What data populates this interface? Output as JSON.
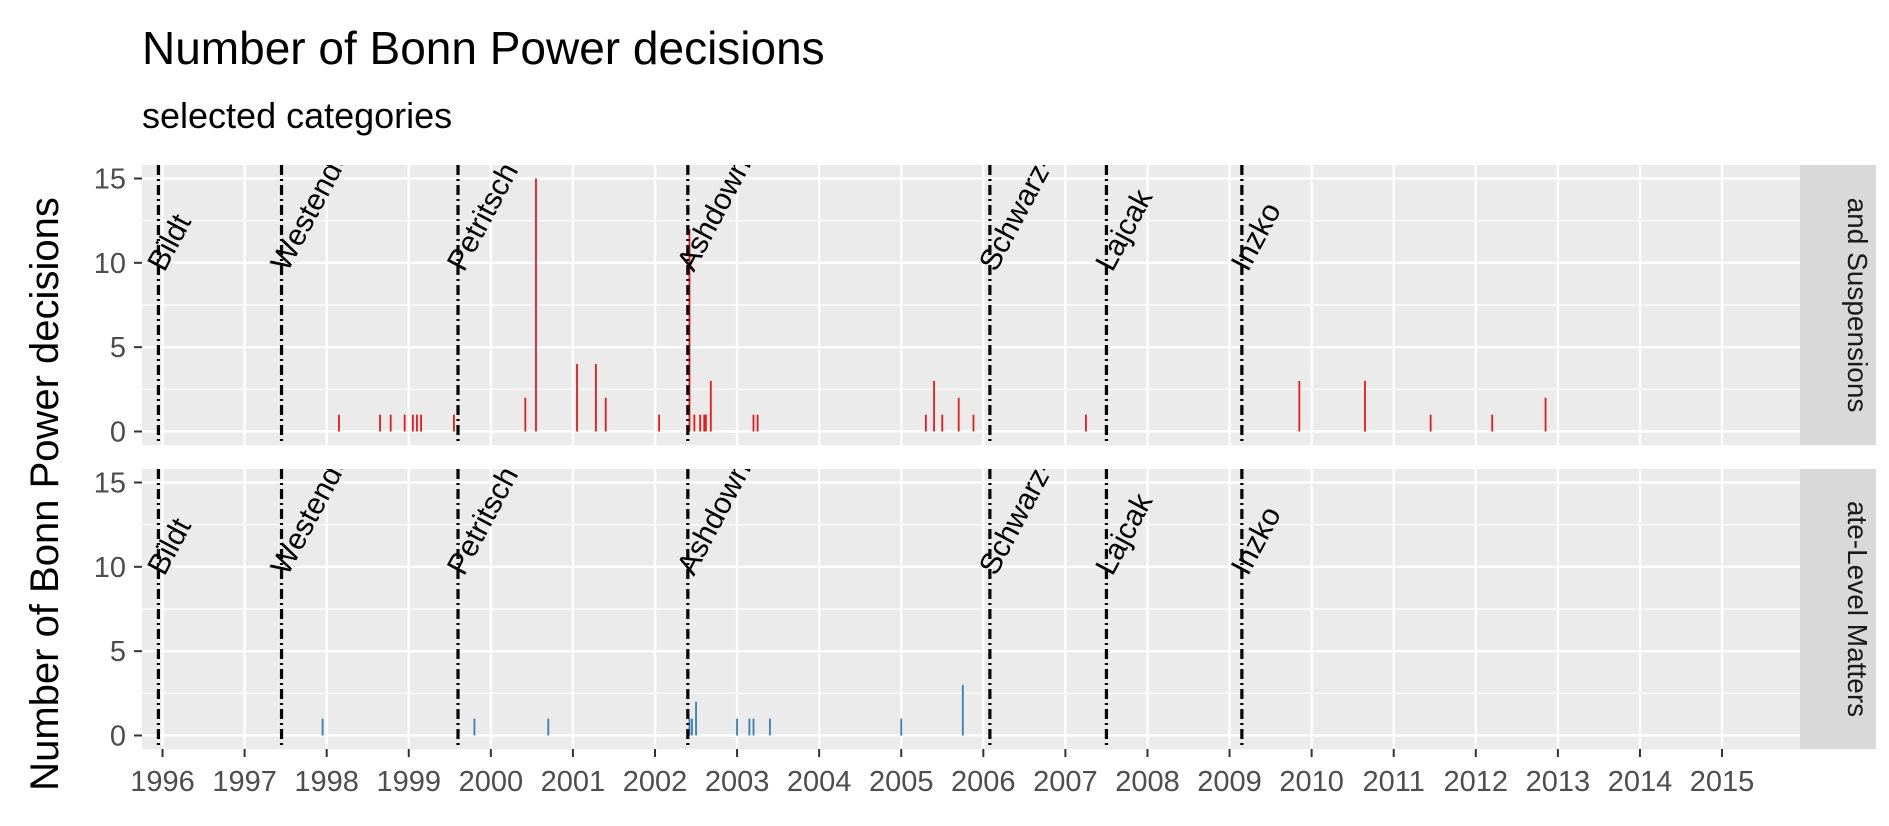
{
  "chart_data": {
    "type": "bar",
    "title": "Number of Bonn Power decisions",
    "subtitle": "selected categories",
    "xlabel": "",
    "ylabel": "Number of Bonn Power decisions",
    "x_ticks": [
      "1996",
      "1997",
      "1998",
      "1999",
      "2000",
      "2001",
      "2002",
      "2003",
      "2004",
      "2005",
      "2006",
      "2007",
      "2008",
      "2009",
      "2010",
      "2011",
      "2012",
      "2013",
      "2014",
      "2015"
    ],
    "y_ticks": [
      0,
      5,
      10,
      15
    ],
    "xlim": [
      1995.75,
      2015.95
    ],
    "ylim": [
      -0.8,
      15.8
    ],
    "grid": true,
    "colors": {
      "panel_1": "#e41a1c",
      "panel_2": "#377eb8",
      "panel_bg": "#ebebeb",
      "strip_bg": "#d9d9d9",
      "grid": "#ffffff"
    },
    "high_representatives": [
      {
        "name": "Bildt",
        "start": 1995.95
      },
      {
        "name": "Westendorp",
        "start": 1997.45
      },
      {
        "name": "Petritsch",
        "start": 1999.6
      },
      {
        "name": "Ashdown",
        "start": 2002.4
      },
      {
        "name": "Schwarz-Schilling",
        "start": 2006.08
      },
      {
        "name": "Lajcak",
        "start": 2007.5
      },
      {
        "name": "Inzko",
        "start": 2009.15
      }
    ],
    "panels": [
      {
        "name": "Removals and Suspensions",
        "strip_label": "and Suspensions",
        "bars": [
          {
            "x": 1998.15,
            "y": 1
          },
          {
            "x": 1998.65,
            "y": 1
          },
          {
            "x": 1998.78,
            "y": 1
          },
          {
            "x": 1998.95,
            "y": 1
          },
          {
            "x": 1999.05,
            "y": 1
          },
          {
            "x": 1999.1,
            "y": 1
          },
          {
            "x": 1999.15,
            "y": 1
          },
          {
            "x": 1999.55,
            "y": 1
          },
          {
            "x": 2000.42,
            "y": 2
          },
          {
            "x": 2000.55,
            "y": 15
          },
          {
            "x": 2001.05,
            "y": 4
          },
          {
            "x": 2001.28,
            "y": 4
          },
          {
            "x": 2001.4,
            "y": 2
          },
          {
            "x": 2002.05,
            "y": 1
          },
          {
            "x": 2002.42,
            "y": 12
          },
          {
            "x": 2002.48,
            "y": 1
          },
          {
            "x": 2002.55,
            "y": 1
          },
          {
            "x": 2002.6,
            "y": 1
          },
          {
            "x": 2002.62,
            "y": 1
          },
          {
            "x": 2002.68,
            "y": 3
          },
          {
            "x": 2003.2,
            "y": 1
          },
          {
            "x": 2003.25,
            "y": 1
          },
          {
            "x": 2005.3,
            "y": 1
          },
          {
            "x": 2005.4,
            "y": 3
          },
          {
            "x": 2005.5,
            "y": 1
          },
          {
            "x": 2005.7,
            "y": 2
          },
          {
            "x": 2005.88,
            "y": 1
          },
          {
            "x": 2007.25,
            "y": 1
          },
          {
            "x": 2009.85,
            "y": 3
          },
          {
            "x": 2010.65,
            "y": 3
          },
          {
            "x": 2011.45,
            "y": 1
          },
          {
            "x": 2012.2,
            "y": 1
          },
          {
            "x": 2012.85,
            "y": 2
          }
        ]
      },
      {
        "name": "State-Level Matters",
        "strip_label": "ate-Level Matters",
        "bars": [
          {
            "x": 1997.95,
            "y": 1
          },
          {
            "x": 1999.8,
            "y": 1
          },
          {
            "x": 2000.7,
            "y": 1
          },
          {
            "x": 2002.42,
            "y": 1
          },
          {
            "x": 2002.45,
            "y": 1
          },
          {
            "x": 2002.5,
            "y": 2
          },
          {
            "x": 2003.0,
            "y": 1
          },
          {
            "x": 2003.15,
            "y": 1
          },
          {
            "x": 2003.2,
            "y": 1
          },
          {
            "x": 2003.4,
            "y": 1
          },
          {
            "x": 2005.0,
            "y": 1
          },
          {
            "x": 2005.75,
            "y": 3
          }
        ]
      }
    ]
  }
}
